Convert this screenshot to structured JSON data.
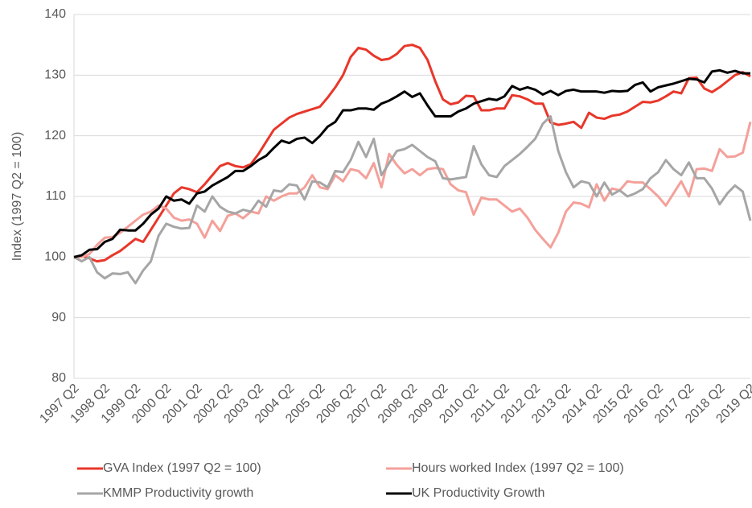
{
  "chart_data": {
    "type": "line",
    "y_label": "Index (1997 Q2 = 100)",
    "categories": [
      "1997 Q2",
      null,
      null,
      null,
      "1998 Q2",
      null,
      null,
      null,
      "1999 Q2",
      null,
      null,
      null,
      "2000 Q2",
      null,
      null,
      null,
      "2001 Q2",
      null,
      null,
      null,
      "2002 Q2",
      null,
      null,
      null,
      "2003 Q2",
      null,
      null,
      null,
      "2004 Q2",
      null,
      null,
      null,
      "2005 Q2",
      null,
      null,
      null,
      "2006 Q2",
      null,
      null,
      null,
      "2007 Q2",
      null,
      null,
      null,
      "2008 Q2",
      null,
      null,
      null,
      "2009 Q2",
      null,
      null,
      null,
      "2010 Q2",
      null,
      null,
      null,
      "2011 Q2",
      null,
      null,
      null,
      "2012 Q2",
      null,
      null,
      null,
      "2013 Q2",
      null,
      null,
      null,
      "2014 Q2",
      null,
      null,
      null,
      "2015 Q2",
      null,
      null,
      null,
      "2016 Q2",
      null,
      null,
      null,
      "2017 Q2",
      null,
      null,
      null,
      "2018 Q2",
      null,
      null,
      null,
      "2019 Q2"
    ],
    "ylim": [
      80,
      140
    ],
    "yticks": [
      80,
      90,
      100,
      110,
      120,
      130,
      140
    ],
    "grid": true,
    "legend": "bottom",
    "series": [
      {
        "name": "GVA Index (1997 Q2 = 100)",
        "color": "#e8372a",
        "values": [
          100,
          100.2,
          99.8,
          99.3,
          99.5,
          100.3,
          101,
          102,
          103,
          102.5,
          104.5,
          106.5,
          108.5,
          110.5,
          111.5,
          111.2,
          110.7,
          112,
          113.5,
          115,
          115.5,
          115,
          114.8,
          115.3,
          117,
          119,
          121,
          122,
          123,
          123.6,
          124,
          124.4,
          124.8,
          126.3,
          128,
          130,
          133,
          134.5,
          134.2,
          133.2,
          132.5,
          132.7,
          133.5,
          134.8,
          135,
          134.5,
          132.5,
          129,
          126,
          125.2,
          125.5,
          126.6,
          126.5,
          124.2,
          124.2,
          124.5,
          124.5,
          126.7,
          126.5,
          126,
          125.3,
          125.3,
          122.2,
          121.8,
          122,
          122.3,
          121.3,
          123.8,
          123,
          122.8,
          123.3,
          123.5,
          124,
          124.8,
          125.6,
          125.5,
          125.8,
          126.5,
          127.3,
          127,
          129.5,
          129.6,
          127.8,
          127.2,
          128,
          129,
          130,
          130.5,
          129.8
        ]
      },
      {
        "name": "Hours worked Index (1997 Q2 = 100)",
        "color": "#f4a09a",
        "values": [
          100,
          100,
          100.5,
          102,
          103.2,
          103.3,
          104,
          105,
          106,
          107,
          107.5,
          108.5,
          108,
          106.5,
          106,
          106.2,
          105.5,
          103.2,
          106,
          104.3,
          106.8,
          107.2,
          106.4,
          107.5,
          107.2,
          110,
          109.3,
          110,
          110.5,
          110.5,
          111.5,
          113.5,
          111.5,
          111.2,
          113.5,
          112.5,
          114.5,
          114.2,
          113,
          115.5,
          111.5,
          117,
          115.2,
          113.8,
          114.5,
          113.5,
          114.5,
          114.7,
          114.5,
          112,
          111,
          110.7,
          107,
          109.8,
          109.5,
          109.5,
          108.5,
          107.5,
          108,
          106.5,
          104.5,
          103,
          101.6,
          104,
          107.5,
          109,
          108.8,
          108.2,
          112,
          109.3,
          111.3,
          111,
          112.5,
          112.3,
          112.3,
          111.2,
          110,
          108.5,
          110.5,
          112.5,
          110,
          114.5,
          114.6,
          114.2,
          117.8,
          116.5,
          116.6,
          117.2,
          122.3
        ]
      },
      {
        "name": "KMMP Productivity growth",
        "color": "#a6a6a6",
        "values": [
          100,
          99.3,
          100,
          97.5,
          96.5,
          97.3,
          97.2,
          97.5,
          95.7,
          97.8,
          99.3,
          103.5,
          105.5,
          105,
          104.7,
          104.8,
          108.5,
          107.5,
          110,
          108.3,
          107.5,
          107.2,
          107.8,
          107.5,
          109.3,
          108.3,
          111,
          110.8,
          112,
          111.8,
          109.5,
          112.5,
          112.3,
          111.5,
          114.2,
          114,
          116,
          119,
          116.5,
          119.5,
          113.5,
          115.5,
          117.5,
          117.8,
          118.5,
          117.5,
          116.5,
          115.8,
          113,
          112.8,
          113,
          113.2,
          118.3,
          115.3,
          113.5,
          113.2,
          115,
          116,
          117,
          118.2,
          119.5,
          122,
          123.2,
          117.5,
          114,
          111.5,
          112.5,
          112.2,
          110,
          112.3,
          110.3,
          111,
          110,
          110.5,
          111.2,
          113,
          114,
          116,
          114.5,
          113.5,
          115.6,
          113,
          113,
          111.3,
          108.7,
          110.5,
          111.8,
          110.8,
          106
        ]
      },
      {
        "name": "UK Productivity Growth",
        "color": "#000000",
        "values": [
          100,
          100.3,
          101.2,
          101.3,
          102.5,
          103,
          104.5,
          104.4,
          104.4,
          105.5,
          107,
          108,
          110,
          109.3,
          109.5,
          108.8,
          110.5,
          110.8,
          111.8,
          112.5,
          113.2,
          114.2,
          114.2,
          115,
          116,
          116.7,
          118,
          119.2,
          118.8,
          119.5,
          119.7,
          118.8,
          120,
          121.5,
          122.3,
          124.2,
          124.2,
          124.5,
          124.5,
          124.3,
          125.3,
          125.8,
          126.5,
          127.3,
          126.4,
          127,
          125,
          123.2,
          123.2,
          123.2,
          124,
          124.5,
          125.3,
          125.7,
          126.1,
          125.9,
          126.5,
          128.2,
          127.6,
          128,
          127.6,
          126.8,
          127.4,
          126.7,
          127.4,
          127.6,
          127.3,
          127.3,
          127.3,
          127.1,
          127.4,
          127.3,
          127.4,
          128.4,
          128.8,
          127.3,
          128,
          128.3,
          128.6,
          129,
          129.4,
          129.3,
          128.8,
          130.6,
          130.8,
          130.4,
          130.7,
          130.3,
          130.3
        ]
      }
    ]
  }
}
